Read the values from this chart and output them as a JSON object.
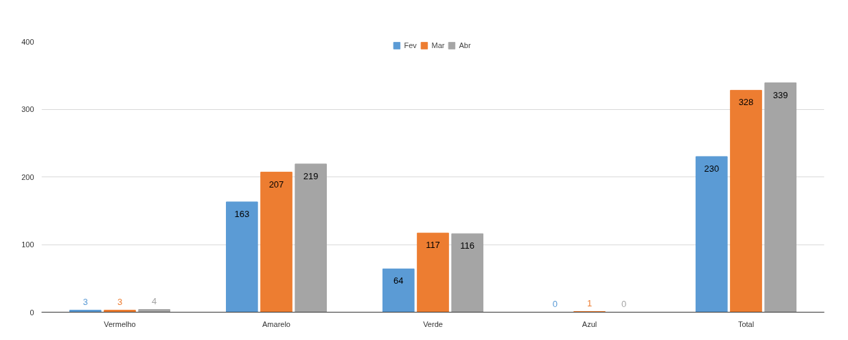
{
  "chart_data": {
    "type": "bar",
    "categories": [
      "Vermelho",
      "Amarelo",
      "Verde",
      "Azul",
      "Total"
    ],
    "series": [
      {
        "name": "Fev",
        "color": "#5b9bd5",
        "values": [
          3,
          163,
          64,
          0,
          230
        ]
      },
      {
        "name": "Mar",
        "color": "#ed7d31",
        "values": [
          3,
          207,
          117,
          1,
          328
        ]
      },
      {
        "name": "Abr",
        "color": "#a5a5a5",
        "values": [
          4,
          219,
          116,
          0,
          339
        ]
      }
    ],
    "ylim": [
      0,
      400
    ],
    "yticks": [
      0,
      100,
      200,
      300,
      400
    ],
    "grid": "y",
    "legend": "top",
    "data_labels": true
  }
}
